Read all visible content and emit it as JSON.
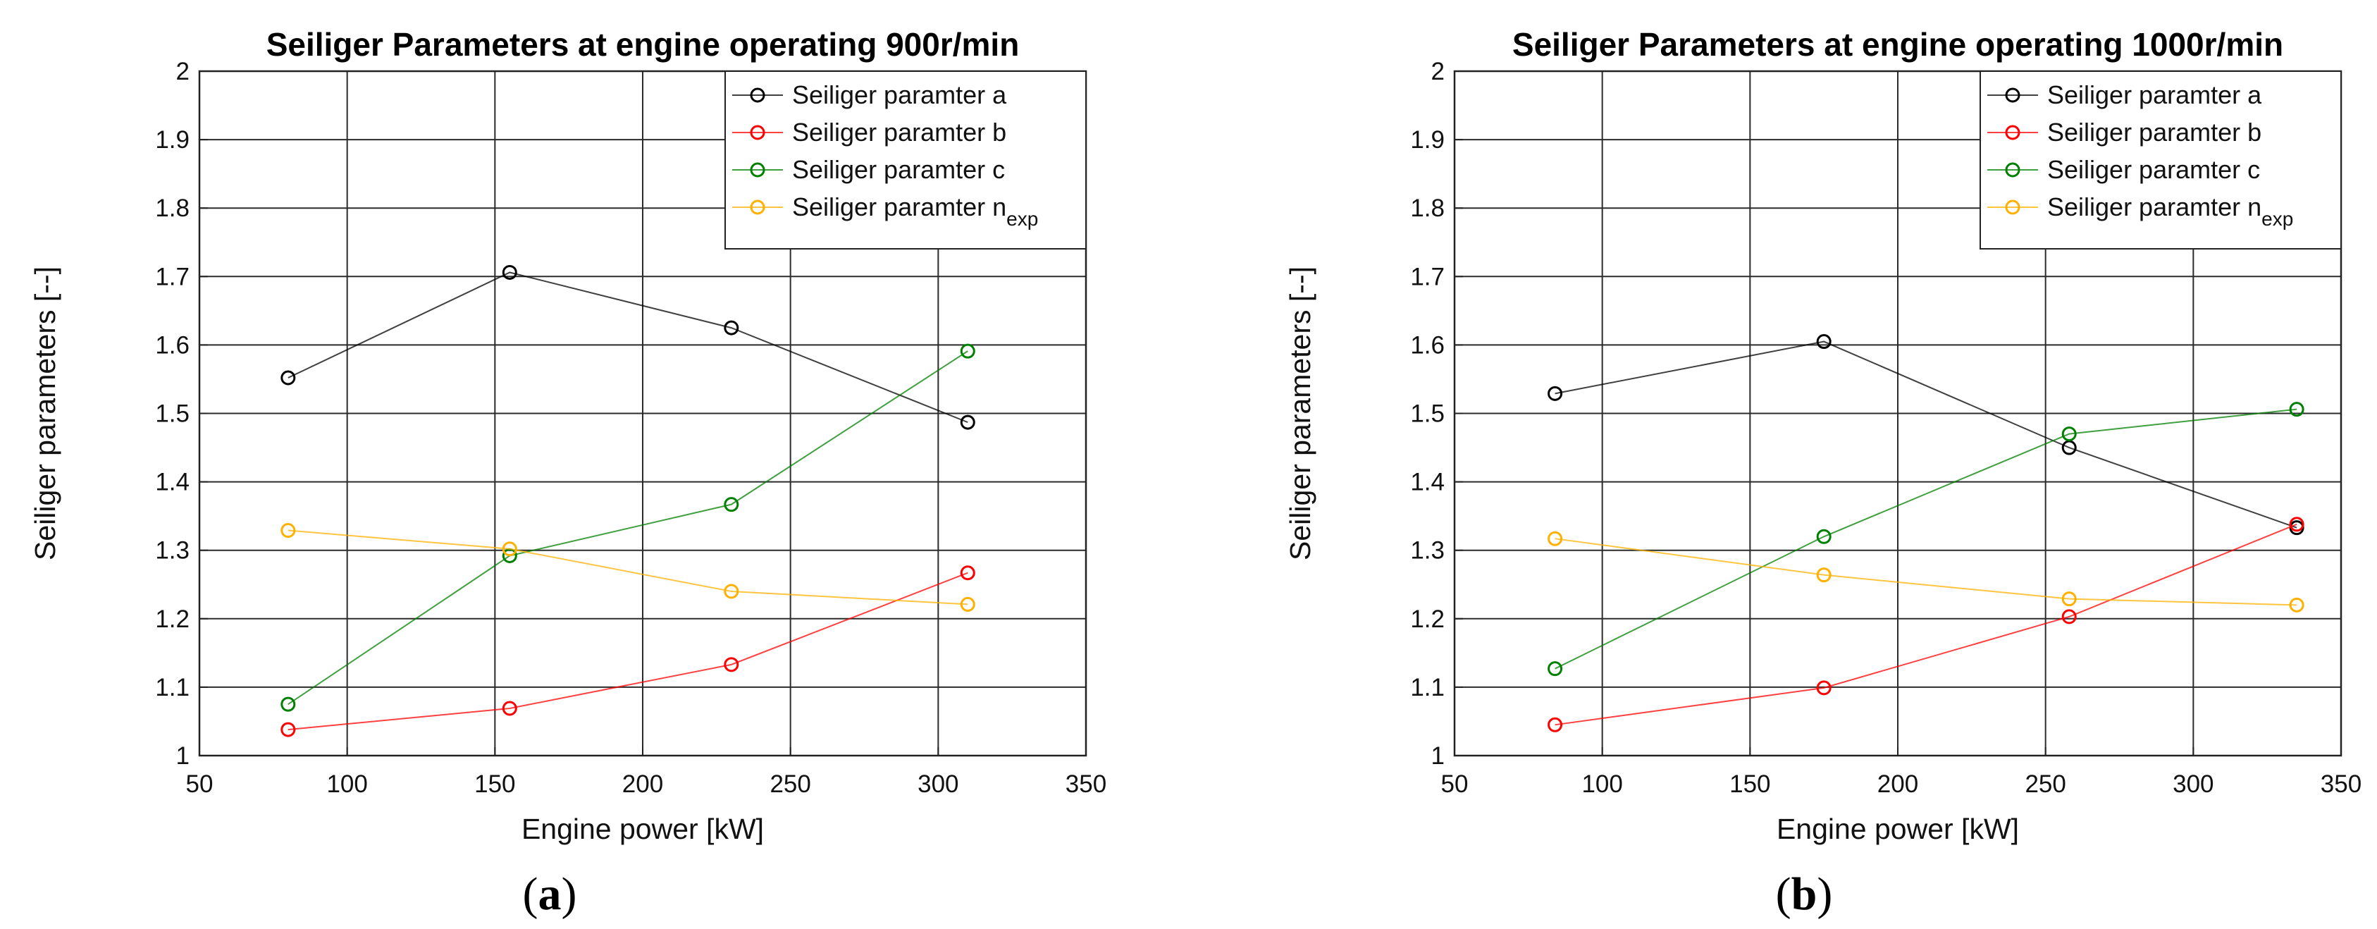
{
  "figure": {
    "panel_labels": [
      {
        "open": "(",
        "letter": "a",
        "close": ")"
      },
      {
        "open": "(",
        "letter": "b",
        "close": ")"
      }
    ]
  },
  "chart_data": [
    {
      "type": "line",
      "title": "Seiliger Parameters at engine operating 900r/min",
      "xlabel": "Engine power [kW]",
      "ylabel": "Seiliger parameters [--]",
      "xlim": [
        50,
        350
      ],
      "ylim": [
        1,
        2
      ],
      "xticks": [
        "50",
        "100",
        "150",
        "200",
        "250",
        "300",
        "350"
      ],
      "yticks": [
        "1",
        "1.1",
        "1.2",
        "1.3",
        "1.4",
        "1.5",
        "1.6",
        "1.7",
        "1.8",
        "1.9",
        "2"
      ],
      "grid": true,
      "legend_location": "top-right",
      "x": [
        80,
        155,
        230,
        310
      ],
      "series": [
        {
          "name": "Seiliger paramter a",
          "subscript": "",
          "color": "#000000",
          "values": [
            1.552,
            1.706,
            1.625,
            1.487
          ]
        },
        {
          "name": "Seiliger paramter b",
          "subscript": "",
          "color": "#ff0000",
          "values": [
            1.038,
            1.069,
            1.133,
            1.267
          ]
        },
        {
          "name": "Seiliger paramter c",
          "subscript": "",
          "color": "#008000",
          "values": [
            1.075,
            1.292,
            1.367,
            1.591
          ]
        },
        {
          "name": "Seiliger paramter n",
          "subscript": "exp",
          "color": "#ffb000",
          "values": [
            1.329,
            1.302,
            1.24,
            1.221
          ]
        }
      ]
    },
    {
      "type": "line",
      "title": "Seiliger Parameters at engine operating 1000r/min",
      "xlabel": "Engine power [kW]",
      "ylabel": "Seiliger parameters [--]",
      "xlim": [
        50,
        350
      ],
      "ylim": [
        1,
        2
      ],
      "xticks": [
        "50",
        "100",
        "150",
        "200",
        "250",
        "300",
        "350"
      ],
      "yticks": [
        "1",
        "1.1",
        "1.2",
        "1.3",
        "1.4",
        "1.5",
        "1.6",
        "1.7",
        "1.8",
        "1.9",
        "2"
      ],
      "grid": true,
      "legend_location": "top-right",
      "x": [
        84,
        175,
        258,
        335
      ],
      "series": [
        {
          "name": "Seiliger paramter a",
          "subscript": "",
          "color": "#000000",
          "values": [
            1.529,
            1.605,
            1.45,
            1.333
          ]
        },
        {
          "name": "Seiliger paramter b",
          "subscript": "",
          "color": "#ff0000",
          "values": [
            1.045,
            1.099,
            1.203,
            1.338
          ]
        },
        {
          "name": "Seiliger paramter c",
          "subscript": "",
          "color": "#008000",
          "values": [
            1.127,
            1.32,
            1.47,
            1.506
          ]
        },
        {
          "name": "Seiliger paramter n",
          "subscript": "exp",
          "color": "#ffb000",
          "values": [
            1.317,
            1.264,
            1.229,
            1.22
          ]
        }
      ]
    }
  ]
}
